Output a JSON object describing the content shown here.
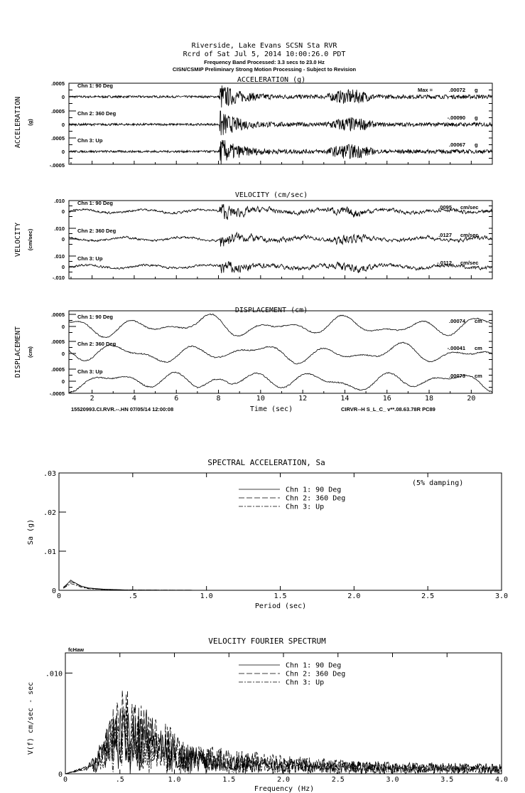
{
  "header": {
    "line1": "Riverside, Lake Evans    SCSN Sta RVR",
    "line2": "Rcrd of Sat Jul  5, 2014 10:00:26.0 PDT",
    "line3": "Frequency Band Processed: 3.3 secs to 23.0 Hz",
    "line4": "CISN/CSMIP Preliminary Strong Motion Processing - Subject to Revision"
  },
  "chart_data": [
    {
      "type": "line",
      "title": "ACCELERATION (g)",
      "ylabel": "ACCELERATION",
      "yunit": "(g)",
      "xlim": [
        1,
        21
      ],
      "ylim": [
        -0.0005,
        0.0005
      ],
      "yticks": [
        ".0005",
        "0",
        "-.0005"
      ],
      "series": [
        {
          "name": "Chn 1: 90 Deg",
          "peak_label": "Max =",
          "peak": ".00072",
          "unit": "g"
        },
        {
          "name": "Chn 2: 360 Deg",
          "peak": "-.00090",
          "unit": "g"
        },
        {
          "name": "Chn 3: Up",
          "peak": ".00067",
          "unit": "g"
        }
      ]
    },
    {
      "type": "line",
      "title": "VELOCITY (cm/sec)",
      "ylabel": "VELOCITY",
      "yunit": "(cm/sec)",
      "xlim": [
        1,
        21
      ],
      "ylim": [
        -0.01,
        0.01
      ],
      "yticks": [
        ".010",
        "0",
        "-.010"
      ],
      "series": [
        {
          "name": "Chn 1: 90 Deg",
          "peak": ".0095",
          "unit": "cm/sec"
        },
        {
          "name": "Chn 2: 360 Deg",
          "peak": ".0127",
          "unit": "cm/sec"
        },
        {
          "name": "Chn 3: Up",
          "peak": "-.0112",
          "unit": "cm/sec"
        }
      ]
    },
    {
      "type": "line",
      "title": "DISPLACEMENT (cm)",
      "ylabel": "DISPLACEMENT",
      "yunit": "(cm)",
      "xlabel": "Time (sec)",
      "xticks": [
        "2",
        "4",
        "6",
        "8",
        "10",
        "12",
        "14",
        "16",
        "18",
        "20"
      ],
      "xlim": [
        1,
        21
      ],
      "ylim": [
        -0.0005,
        0.0005
      ],
      "yticks": [
        ".0005",
        "0",
        "-.0005"
      ],
      "footer_left": "15520993.CI.RVR.--.HN 07/05/14 12:00:08",
      "footer_right": "CIRVR--H  S_L_C_  v**.08.63.78R PC89",
      "series": [
        {
          "name": "Chn 1: 90 Deg",
          "peak": ".00074",
          "unit": "cm"
        },
        {
          "name": "Chn 2: 360 Deg",
          "peak": "-.00041",
          "unit": "cm"
        },
        {
          "name": "Chn 3: Up",
          "peak": ".00073",
          "unit": "cm"
        }
      ]
    },
    {
      "type": "line",
      "title": "SPECTRAL ACCELERATION, Sa",
      "xlabel": "Period (sec)",
      "ylabel": "Sa (g)",
      "annotation": "(5% damping)",
      "xlim": [
        0,
        3.0
      ],
      "ylim": [
        0,
        0.03
      ],
      "xticks": [
        "0",
        ".5",
        "1.0",
        "1.5",
        "2.0",
        "2.5",
        "3.0"
      ],
      "yticks": [
        ".03",
        ".02",
        ".01",
        "0"
      ],
      "legend": "top-center",
      "x": [
        0.03,
        0.05,
        0.08,
        0.1,
        0.15,
        0.2,
        0.3,
        0.45,
        0.6,
        1.0,
        2.0,
        3.0
      ],
      "series": [
        {
          "name": "Chn 1: 90 Deg",
          "style": "solid",
          "values": [
            0.0008,
            0.0014,
            0.0026,
            0.0021,
            0.0011,
            0.0006,
            0.0003,
            0.0001,
            5e-05,
            2e-05,
            0,
            0
          ]
        },
        {
          "name": "Chn 2: 360 Deg",
          "style": "dashed",
          "values": [
            0.0007,
            0.0012,
            0.0022,
            0.0019,
            0.001,
            0.0005,
            0.0002,
            0.0001,
            5e-05,
            2e-05,
            0,
            0
          ]
        },
        {
          "name": "Chn 3: Up",
          "style": "dashdot",
          "values": [
            0.0005,
            0.001,
            0.0017,
            0.0015,
            0.0008,
            0.0004,
            0.0002,
            0.0001,
            4e-05,
            1e-05,
            0,
            0
          ]
        }
      ]
    },
    {
      "type": "line",
      "title": "VELOCITY FOURIER SPECTRUM",
      "corner_label": "fcHaw",
      "xlabel": "Frequency (Hz)",
      "ylabel": "V(f)   cm/sec - sec",
      "xlim": [
        0,
        4.0
      ],
      "ylim": [
        0,
        0.012
      ],
      "xticks": [
        "0",
        ".5",
        "1.0",
        "1.5",
        "2.0",
        "2.5",
        "3.0",
        "3.5",
        "4.0"
      ],
      "yticks": [
        ".010",
        "0"
      ],
      "legend": "top-center",
      "envelope_x": [
        0,
        0.2,
        0.3,
        0.4,
        0.5,
        0.7,
        0.9,
        1.1,
        1.5,
        2.0,
        3.0,
        4.0
      ],
      "series": [
        {
          "name": "Chn 1: 90 Deg",
          "style": "solid",
          "envelope": [
            0,
            0.0008,
            0.0025,
            0.0055,
            0.0065,
            0.0075,
            0.004,
            0.003,
            0.002,
            0.0015,
            0.0012,
            0.001
          ]
        },
        {
          "name": "Chn 2: 360 Deg",
          "style": "dashed",
          "envelope": [
            0,
            0.0007,
            0.002,
            0.005,
            0.009,
            0.007,
            0.0055,
            0.003,
            0.0025,
            0.0018,
            0.001,
            0.0008
          ]
        },
        {
          "name": "Chn 3: Up",
          "style": "dashdot",
          "envelope": [
            0,
            0.0006,
            0.0018,
            0.004,
            0.0055,
            0.005,
            0.004,
            0.0025,
            0.0018,
            0.0012,
            0.0009,
            0.0007
          ]
        }
      ]
    }
  ]
}
